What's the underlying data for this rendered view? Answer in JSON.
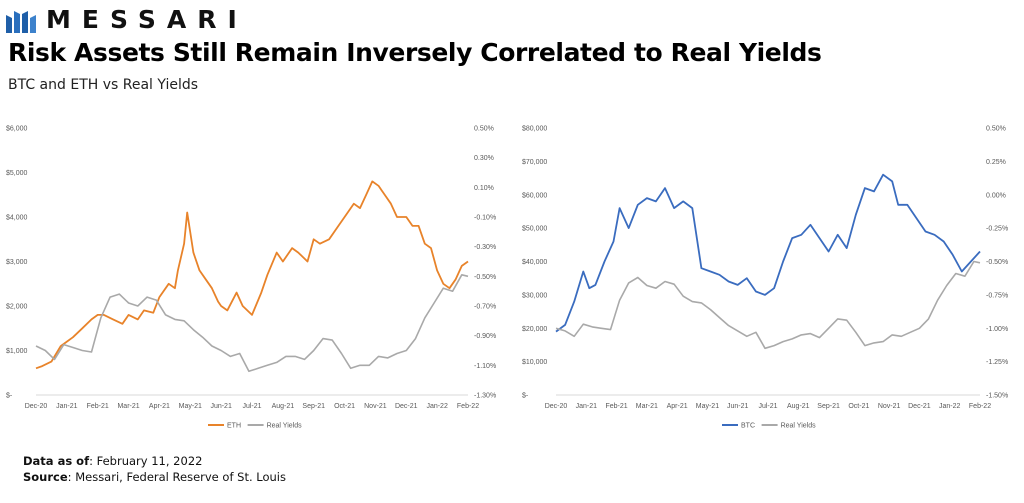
{
  "brand": {
    "name": "MESSARI",
    "logo_icon": "messari-m-logo-icon",
    "color": "#1f5fa8"
  },
  "header": {
    "title": "Risk Assets Still Remain Inversely Correlated to Real Yields",
    "subtitle": "BTC and ETH vs Real Yields"
  },
  "footer": {
    "date_label": "Data as of",
    "date_value": ": February 11, 2022",
    "source_label": "Source",
    "source_value": ": Messari, Federal Reserve of St. Louis"
  },
  "chart_data": [
    {
      "type": "line",
      "categories": [
        "Dec-20",
        "Jan-21",
        "Feb-21",
        "Mar-21",
        "Apr-21",
        "May-21",
        "Jun-21",
        "Jul-21",
        "Aug-21",
        "Sep-21",
        "Oct-21",
        "Nov-21",
        "Dec-21",
        "Jan-22",
        "Feb-22"
      ],
      "y_left": {
        "min": 0,
        "max": 6000,
        "ticks": [
          "$-",
          "$1,000",
          "$2,000",
          "$3,000",
          "$4,000",
          "$5,000",
          "$6,000"
        ]
      },
      "y_right": {
        "min": -1.3,
        "max": 0.5,
        "ticks": [
          "-1.30%",
          "-1.10%",
          "-0.90%",
          "-0.70%",
          "-0.50%",
          "-0.30%",
          "-0.10%",
          "0.10%",
          "0.30%",
          "0.50%"
        ]
      },
      "grid": false,
      "legend": "bottom",
      "series": [
        {
          "name": "ETH",
          "axis": "left",
          "color": "#e8832a",
          "x": [
            0,
            0.2,
            0.5,
            0.8,
            1.0,
            1.2,
            1.5,
            1.8,
            2.0,
            2.2,
            2.5,
            2.8,
            3.0,
            3.3,
            3.5,
            3.8,
            4.0,
            4.3,
            4.5,
            4.6,
            4.8,
            4.9,
            5.1,
            5.3,
            5.5,
            5.7,
            5.9,
            6.0,
            6.2,
            6.5,
            6.7,
            7.0,
            7.3,
            7.5,
            7.8,
            8.0,
            8.3,
            8.5,
            8.8,
            9.0,
            9.2,
            9.5,
            9.8,
            10.0,
            10.3,
            10.5,
            10.7,
            10.9,
            11.1,
            11.3,
            11.5,
            11.7,
            12.0,
            12.2,
            12.4,
            12.6,
            12.8,
            13.0,
            13.2,
            13.4,
            13.6,
            13.8,
            14.0
          ],
          "values": [
            600,
            650,
            750,
            1100,
            1200,
            1300,
            1500,
            1700,
            1800,
            1800,
            1700,
            1600,
            1800,
            1700,
            1900,
            1850,
            2200,
            2500,
            2400,
            2800,
            3400,
            4100,
            3200,
            2800,
            2600,
            2400,
            2100,
            2000,
            1900,
            2300,
            2000,
            1800,
            2300,
            2700,
            3200,
            3000,
            3300,
            3200,
            3000,
            3500,
            3400,
            3500,
            3800,
            4000,
            4300,
            4200,
            4500,
            4800,
            4700,
            4500,
            4300,
            4000,
            4000,
            3800,
            3800,
            3400,
            3300,
            2800,
            2500,
            2400,
            2600,
            2900,
            3000
          ]
        },
        {
          "name": "Real Yields",
          "axis": "right",
          "color": "#a9a9a9",
          "x": [
            0,
            0.3,
            0.6,
            0.9,
            1.2,
            1.5,
            1.8,
            2.1,
            2.4,
            2.7,
            3.0,
            3.3,
            3.6,
            3.9,
            4.2,
            4.5,
            4.8,
            5.1,
            5.4,
            5.7,
            6.0,
            6.3,
            6.6,
            6.9,
            7.2,
            7.5,
            7.8,
            8.1,
            8.4,
            8.7,
            9.0,
            9.3,
            9.6,
            9.9,
            10.2,
            10.5,
            10.8,
            11.1,
            11.4,
            11.7,
            12.0,
            12.3,
            12.6,
            12.9,
            13.2,
            13.5,
            13.8,
            14.0
          ],
          "values": [
            -0.97,
            -1.0,
            -1.06,
            -0.96,
            -0.98,
            -1.0,
            -1.01,
            -0.78,
            -0.64,
            -0.62,
            -0.68,
            -0.7,
            -0.64,
            -0.66,
            -0.76,
            -0.79,
            -0.8,
            -0.86,
            -0.91,
            -0.97,
            -1.0,
            -1.04,
            -1.02,
            -1.14,
            -1.12,
            -1.1,
            -1.08,
            -1.04,
            -1.04,
            -1.06,
            -1.0,
            -0.92,
            -0.93,
            -1.02,
            -1.12,
            -1.1,
            -1.1,
            -1.04,
            -1.05,
            -1.02,
            -1.0,
            -0.92,
            -0.78,
            -0.68,
            -0.58,
            -0.6,
            -0.49,
            -0.5
          ]
        }
      ]
    },
    {
      "type": "line",
      "categories": [
        "Dec-20",
        "Jan-21",
        "Feb-21",
        "Mar-21",
        "Apr-21",
        "May-21",
        "Jun-21",
        "Jul-21",
        "Aug-21",
        "Sep-21",
        "Oct-21",
        "Nov-21",
        "Dec-21",
        "Jan-22",
        "Feb-22"
      ],
      "y_left": {
        "min": 0,
        "max": 80000,
        "ticks": [
          "$-",
          "$10,000",
          "$20,000",
          "$30,000",
          "$40,000",
          "$50,000",
          "$60,000",
          "$70,000",
          "$80,000"
        ]
      },
      "y_right": {
        "min": -1.5,
        "max": 0.5,
        "ticks": [
          "-1.50%",
          "-1.25%",
          "-1.00%",
          "-0.75%",
          "-0.50%",
          "-0.25%",
          "0.00%",
          "0.25%",
          "0.50%"
        ]
      },
      "grid": false,
      "legend": "bottom",
      "series": [
        {
          "name": "BTC",
          "axis": "left",
          "color": "#3a6cbf",
          "x": [
            0,
            0.3,
            0.6,
            0.9,
            1.1,
            1.3,
            1.6,
            1.9,
            2.1,
            2.4,
            2.7,
            3.0,
            3.3,
            3.6,
            3.9,
            4.2,
            4.5,
            4.8,
            5.1,
            5.4,
            5.7,
            6.0,
            6.3,
            6.6,
            6.9,
            7.2,
            7.5,
            7.8,
            8.1,
            8.4,
            8.7,
            9.0,
            9.3,
            9.6,
            9.9,
            10.2,
            10.5,
            10.8,
            11.1,
            11.3,
            11.6,
            11.9,
            12.2,
            12.5,
            12.8,
            13.1,
            13.4,
            13.7,
            14.0
          ],
          "values": [
            19000,
            21000,
            28000,
            37000,
            32000,
            33000,
            40000,
            46000,
            56000,
            50000,
            57000,
            59000,
            58000,
            62000,
            56000,
            58000,
            56000,
            38000,
            37000,
            36000,
            34000,
            33000,
            35000,
            31000,
            30000,
            32000,
            40000,
            47000,
            48000,
            51000,
            47000,
            43000,
            48000,
            44000,
            54000,
            62000,
            61000,
            66000,
            64000,
            57000,
            57000,
            53000,
            49000,
            48000,
            46000,
            42000,
            37000,
            40000,
            43000
          ]
        },
        {
          "name": "Real Yields",
          "axis": "right",
          "color": "#a9a9a9",
          "x": [
            0,
            0.3,
            0.6,
            0.9,
            1.2,
            1.5,
            1.8,
            2.1,
            2.4,
            2.7,
            3.0,
            3.3,
            3.6,
            3.9,
            4.2,
            4.5,
            4.8,
            5.1,
            5.4,
            5.7,
            6.0,
            6.3,
            6.6,
            6.9,
            7.2,
            7.5,
            7.8,
            8.1,
            8.4,
            8.7,
            9.0,
            9.3,
            9.6,
            9.9,
            10.2,
            10.5,
            10.8,
            11.1,
            11.4,
            11.7,
            12.0,
            12.3,
            12.6,
            12.9,
            13.2,
            13.5,
            13.8,
            14.0
          ],
          "values": [
            -1.0,
            -1.02,
            -1.06,
            -0.97,
            -0.99,
            -1.0,
            -1.01,
            -0.79,
            -0.66,
            -0.62,
            -0.68,
            -0.7,
            -0.65,
            -0.67,
            -0.76,
            -0.8,
            -0.81,
            -0.86,
            -0.92,
            -0.98,
            -1.02,
            -1.06,
            -1.03,
            -1.15,
            -1.13,
            -1.1,
            -1.08,
            -1.05,
            -1.04,
            -1.07,
            -1.0,
            -0.93,
            -0.94,
            -1.03,
            -1.13,
            -1.11,
            -1.1,
            -1.05,
            -1.06,
            -1.03,
            -1.0,
            -0.93,
            -0.79,
            -0.68,
            -0.59,
            -0.61,
            -0.5,
            -0.51
          ]
        }
      ]
    }
  ]
}
